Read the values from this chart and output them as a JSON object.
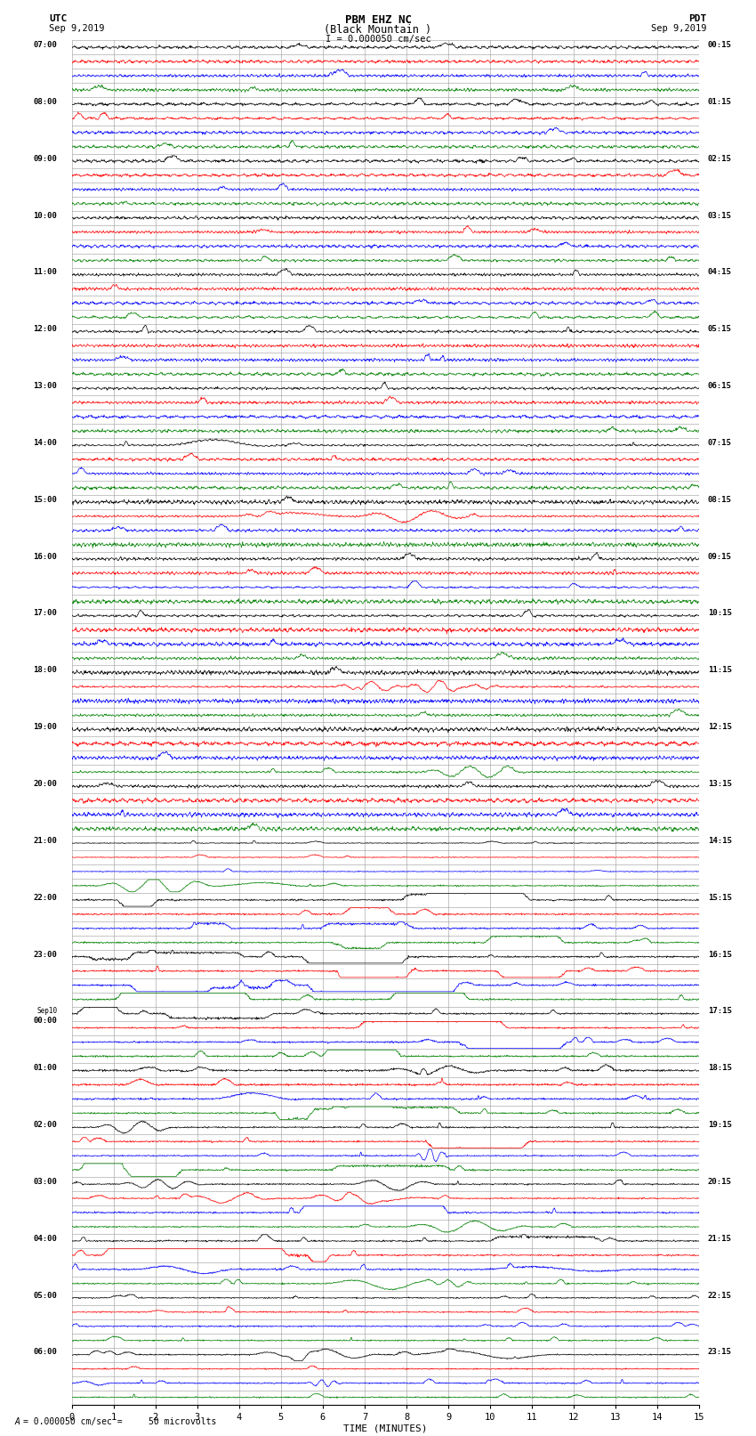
{
  "title_line1": "PBM EHZ NC",
  "title_line2": "(Black Mountain )",
  "scale_label": "I = 0.000050 cm/sec",
  "left_label_top": "UTC",
  "left_label_date": "Sep 9,2019",
  "right_label_top": "PDT",
  "right_label_date": "Sep 9,2019",
  "xlabel": "TIME (MINUTES)",
  "footer_label": "= 0.000050 cm/sec =     50 microvolts",
  "utc_labels": [
    "07:00",
    "08:00",
    "09:00",
    "10:00",
    "11:00",
    "12:00",
    "13:00",
    "14:00",
    "15:00",
    "16:00",
    "17:00",
    "18:00",
    "19:00",
    "20:00",
    "21:00",
    "22:00",
    "23:00",
    "Sep10\n00:00",
    "01:00",
    "02:00",
    "03:00",
    "04:00",
    "05:00",
    "06:00"
  ],
  "pdt_labels": [
    "00:15",
    "01:15",
    "02:15",
    "03:15",
    "04:15",
    "05:15",
    "06:15",
    "07:15",
    "08:15",
    "09:15",
    "10:15",
    "11:15",
    "12:15",
    "13:15",
    "14:15",
    "15:15",
    "16:15",
    "17:15",
    "18:15",
    "19:15",
    "20:15",
    "21:15",
    "22:15",
    "23:15"
  ],
  "n_hour_groups": 24,
  "traces_per_group": 4,
  "colors": [
    "black",
    "red",
    "blue",
    "green"
  ],
  "xmin": 0,
  "xmax": 15,
  "bg_color": "#ffffff",
  "grid_color": "#999999",
  "noise_seed": 12345
}
